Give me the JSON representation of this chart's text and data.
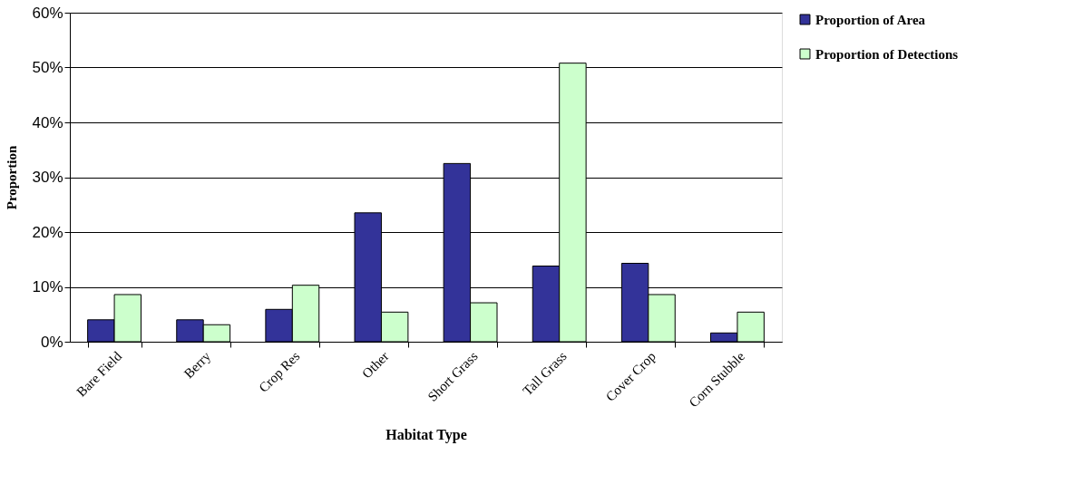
{
  "chart_data": {
    "type": "bar",
    "xlabel": "Habitat Type",
    "ylabel": "Proportion",
    "categories": [
      "Bare Field",
      "Berry",
      "Crop Res",
      "Other",
      "Short Grass",
      "Tall Grass",
      "Cover Crop",
      "Corn Stubble"
    ],
    "series": [
      {
        "name": "Proportion of Area",
        "color": "#333399",
        "values": [
          4.0,
          4.0,
          5.9,
          23.5,
          32.5,
          13.8,
          14.3,
          1.6
        ]
      },
      {
        "name": "Proportion of Detections",
        "color": "#ccffcc",
        "values": [
          8.6,
          3.1,
          10.3,
          5.4,
          7.1,
          50.8,
          8.6,
          5.4
        ]
      }
    ],
    "ylim": [
      0,
      60
    ],
    "yticks": [
      {
        "value": 0,
        "label": "0%"
      },
      {
        "value": 10,
        "label": "10%"
      },
      {
        "value": 20,
        "label": "20%"
      },
      {
        "value": 30,
        "label": "30%"
      },
      {
        "value": 40,
        "label": "40%"
      },
      {
        "value": 50,
        "label": "50%"
      },
      {
        "value": 60,
        "label": "60%"
      }
    ],
    "grid": "y",
    "legend": "top right"
  }
}
